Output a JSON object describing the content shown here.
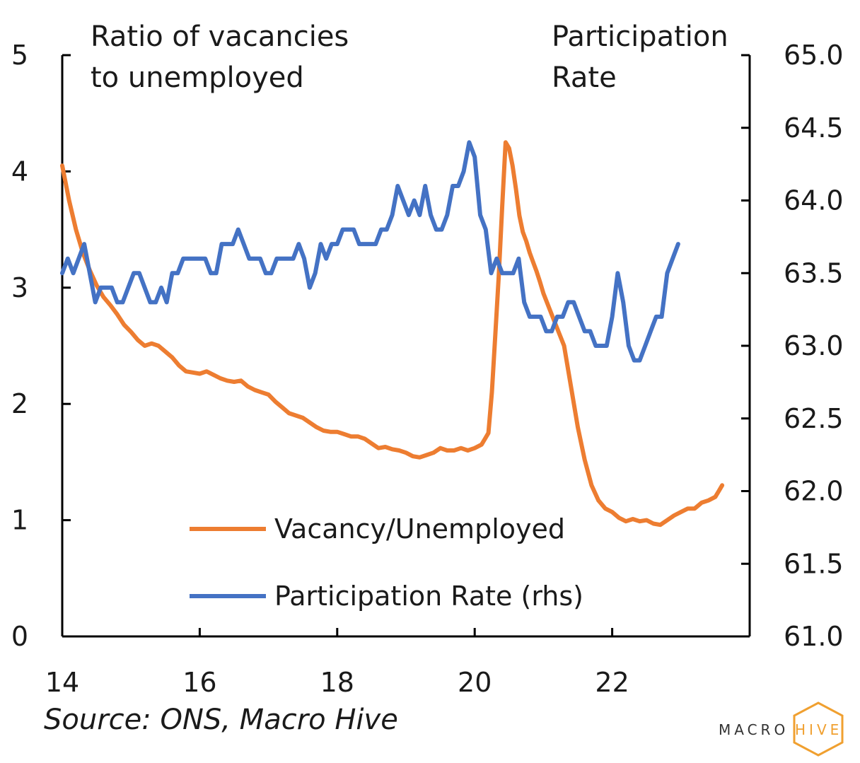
{
  "chart_data": {
    "type": "line",
    "left_title_lines": [
      "Ratio of vacancies",
      "to unemployed"
    ],
    "right_title_lines": [
      "Participation",
      "Rate"
    ],
    "xlim": [
      14,
      24
    ],
    "x_ticks": [
      14,
      16,
      18,
      20,
      22
    ],
    "x_tick_labels": [
      "14",
      "16",
      "18",
      "20",
      "22"
    ],
    "ylim_left": [
      0,
      5
    ],
    "y_left_ticks": [
      0,
      1,
      2,
      3,
      4,
      5
    ],
    "y_left_tick_labels": [
      "0",
      "1",
      "2",
      "3",
      "4",
      "5"
    ],
    "ylim_right": [
      61.0,
      65.0
    ],
    "y_right_ticks": [
      61.0,
      61.5,
      62.0,
      62.5,
      63.0,
      63.5,
      64.0,
      64.5,
      65.0
    ],
    "y_right_tick_labels": [
      "61.0",
      "61.5",
      "62.0",
      "62.5",
      "63.0",
      "63.5",
      "64.0",
      "64.5",
      "65.0"
    ],
    "grid": false,
    "legend_position": "bottom-center",
    "series": [
      {
        "name": "Vacancy/Unemployed",
        "axis": "left",
        "color": "#ED7D31",
        "points": [
          [
            14.0,
            4.05
          ],
          [
            14.1,
            3.75
          ],
          [
            14.2,
            3.5
          ],
          [
            14.3,
            3.3
          ],
          [
            14.4,
            3.15
          ],
          [
            14.5,
            3.02
          ],
          [
            14.6,
            2.92
          ],
          [
            14.7,
            2.85
          ],
          [
            14.8,
            2.77
          ],
          [
            14.9,
            2.68
          ],
          [
            15.0,
            2.62
          ],
          [
            15.1,
            2.55
          ],
          [
            15.2,
            2.5
          ],
          [
            15.3,
            2.52
          ],
          [
            15.4,
            2.5
          ],
          [
            15.5,
            2.45
          ],
          [
            15.6,
            2.4
          ],
          [
            15.7,
            2.33
          ],
          [
            15.8,
            2.28
          ],
          [
            15.9,
            2.27
          ],
          [
            16.0,
            2.26
          ],
          [
            16.1,
            2.28
          ],
          [
            16.2,
            2.25
          ],
          [
            16.3,
            2.22
          ],
          [
            16.4,
            2.2
          ],
          [
            16.5,
            2.19
          ],
          [
            16.6,
            2.2
          ],
          [
            16.7,
            2.15
          ],
          [
            16.8,
            2.12
          ],
          [
            16.9,
            2.1
          ],
          [
            17.0,
            2.08
          ],
          [
            17.1,
            2.02
          ],
          [
            17.2,
            1.97
          ],
          [
            17.3,
            1.92
          ],
          [
            17.4,
            1.9
          ],
          [
            17.5,
            1.88
          ],
          [
            17.6,
            1.84
          ],
          [
            17.7,
            1.8
          ],
          [
            17.8,
            1.77
          ],
          [
            17.9,
            1.76
          ],
          [
            18.0,
            1.76
          ],
          [
            18.1,
            1.74
          ],
          [
            18.2,
            1.72
          ],
          [
            18.3,
            1.72
          ],
          [
            18.4,
            1.7
          ],
          [
            18.5,
            1.66
          ],
          [
            18.6,
            1.62
          ],
          [
            18.7,
            1.63
          ],
          [
            18.8,
            1.61
          ],
          [
            18.9,
            1.6
          ],
          [
            19.0,
            1.58
          ],
          [
            19.1,
            1.55
          ],
          [
            19.2,
            1.54
          ],
          [
            19.3,
            1.56
          ],
          [
            19.4,
            1.58
          ],
          [
            19.5,
            1.62
          ],
          [
            19.6,
            1.6
          ],
          [
            19.7,
            1.6
          ],
          [
            19.8,
            1.62
          ],
          [
            19.9,
            1.6
          ],
          [
            20.0,
            1.62
          ],
          [
            20.1,
            1.65
          ],
          [
            20.15,
            1.7
          ],
          [
            20.2,
            1.75
          ],
          [
            20.25,
            2.1
          ],
          [
            20.3,
            2.6
          ],
          [
            20.35,
            3.1
          ],
          [
            20.4,
            3.7
          ],
          [
            20.45,
            4.25
          ],
          [
            20.5,
            4.2
          ],
          [
            20.55,
            4.05
          ],
          [
            20.6,
            3.85
          ],
          [
            20.65,
            3.62
          ],
          [
            20.7,
            3.48
          ],
          [
            20.75,
            3.4
          ],
          [
            20.8,
            3.3
          ],
          [
            20.85,
            3.22
          ],
          [
            20.9,
            3.14
          ],
          [
            20.95,
            3.05
          ],
          [
            21.0,
            2.95
          ],
          [
            21.1,
            2.8
          ],
          [
            21.2,
            2.65
          ],
          [
            21.3,
            2.5
          ],
          [
            21.4,
            2.15
          ],
          [
            21.5,
            1.8
          ],
          [
            21.6,
            1.52
          ],
          [
            21.7,
            1.3
          ],
          [
            21.8,
            1.17
          ],
          [
            21.9,
            1.1
          ],
          [
            22.0,
            1.07
          ],
          [
            22.1,
            1.02
          ],
          [
            22.2,
            0.99
          ],
          [
            22.3,
            1.01
          ],
          [
            22.4,
            0.99
          ],
          [
            22.5,
            1.0
          ],
          [
            22.6,
            0.97
          ],
          [
            22.7,
            0.96
          ],
          [
            22.8,
            1.0
          ],
          [
            22.9,
            1.04
          ],
          [
            23.0,
            1.07
          ],
          [
            23.1,
            1.1
          ],
          [
            23.2,
            1.1
          ],
          [
            23.3,
            1.15
          ],
          [
            23.4,
            1.17
          ],
          [
            23.5,
            1.2
          ],
          [
            23.55,
            1.25
          ],
          [
            23.6,
            1.3
          ]
        ]
      },
      {
        "name": "Participation Rate (rhs)",
        "axis": "right",
        "color": "#4472C4",
        "points": [
          [
            14.0,
            63.5
          ],
          [
            14.08,
            63.6
          ],
          [
            14.16,
            63.5
          ],
          [
            14.24,
            63.6
          ],
          [
            14.32,
            63.7
          ],
          [
            14.4,
            63.5
          ],
          [
            14.48,
            63.3
          ],
          [
            14.56,
            63.4
          ],
          [
            14.64,
            63.4
          ],
          [
            14.72,
            63.4
          ],
          [
            14.8,
            63.3
          ],
          [
            14.88,
            63.3
          ],
          [
            14.96,
            63.4
          ],
          [
            15.04,
            63.5
          ],
          [
            15.12,
            63.5
          ],
          [
            15.2,
            63.4
          ],
          [
            15.28,
            63.3
          ],
          [
            15.36,
            63.3
          ],
          [
            15.44,
            63.4
          ],
          [
            15.52,
            63.3
          ],
          [
            15.6,
            63.5
          ],
          [
            15.68,
            63.5
          ],
          [
            15.76,
            63.6
          ],
          [
            15.84,
            63.6
          ],
          [
            15.92,
            63.6
          ],
          [
            16.0,
            63.6
          ],
          [
            16.08,
            63.6
          ],
          [
            16.16,
            63.5
          ],
          [
            16.24,
            63.5
          ],
          [
            16.32,
            63.7
          ],
          [
            16.4,
            63.7
          ],
          [
            16.48,
            63.7
          ],
          [
            16.56,
            63.8
          ],
          [
            16.64,
            63.7
          ],
          [
            16.72,
            63.6
          ],
          [
            16.8,
            63.6
          ],
          [
            16.88,
            63.6
          ],
          [
            16.96,
            63.5
          ],
          [
            17.04,
            63.5
          ],
          [
            17.12,
            63.6
          ],
          [
            17.2,
            63.6
          ],
          [
            17.28,
            63.6
          ],
          [
            17.36,
            63.6
          ],
          [
            17.44,
            63.7
          ],
          [
            17.52,
            63.6
          ],
          [
            17.6,
            63.4
          ],
          [
            17.68,
            63.5
          ],
          [
            17.76,
            63.7
          ],
          [
            17.84,
            63.6
          ],
          [
            17.92,
            63.7
          ],
          [
            18.0,
            63.7
          ],
          [
            18.08,
            63.8
          ],
          [
            18.16,
            63.8
          ],
          [
            18.24,
            63.8
          ],
          [
            18.32,
            63.7
          ],
          [
            18.4,
            63.7
          ],
          [
            18.48,
            63.7
          ],
          [
            18.56,
            63.7
          ],
          [
            18.64,
            63.8
          ],
          [
            18.72,
            63.8
          ],
          [
            18.8,
            63.9
          ],
          [
            18.88,
            64.1
          ],
          [
            18.96,
            64.0
          ],
          [
            19.04,
            63.9
          ],
          [
            19.12,
            64.0
          ],
          [
            19.2,
            63.9
          ],
          [
            19.28,
            64.1
          ],
          [
            19.36,
            63.9
          ],
          [
            19.44,
            63.8
          ],
          [
            19.52,
            63.8
          ],
          [
            19.6,
            63.9
          ],
          [
            19.68,
            64.1
          ],
          [
            19.76,
            64.1
          ],
          [
            19.84,
            64.2
          ],
          [
            19.92,
            64.4
          ],
          [
            20.0,
            64.3
          ],
          [
            20.08,
            63.9
          ],
          [
            20.16,
            63.8
          ],
          [
            20.24,
            63.5
          ],
          [
            20.32,
            63.6
          ],
          [
            20.4,
            63.5
          ],
          [
            20.48,
            63.5
          ],
          [
            20.56,
            63.5
          ],
          [
            20.64,
            63.6
          ],
          [
            20.72,
            63.3
          ],
          [
            20.8,
            63.2
          ],
          [
            20.88,
            63.2
          ],
          [
            20.96,
            63.2
          ],
          [
            21.04,
            63.1
          ],
          [
            21.12,
            63.1
          ],
          [
            21.2,
            63.2
          ],
          [
            21.28,
            63.2
          ],
          [
            21.36,
            63.3
          ],
          [
            21.44,
            63.3
          ],
          [
            21.52,
            63.2
          ],
          [
            21.6,
            63.1
          ],
          [
            21.68,
            63.1
          ],
          [
            21.76,
            63.0
          ],
          [
            21.84,
            63.0
          ],
          [
            21.92,
            63.0
          ],
          [
            22.0,
            63.2
          ],
          [
            22.08,
            63.5
          ],
          [
            22.16,
            63.3
          ],
          [
            22.24,
            63.0
          ],
          [
            22.32,
            62.9
          ],
          [
            22.4,
            62.9
          ],
          [
            22.48,
            63.0
          ],
          [
            22.56,
            63.1
          ],
          [
            22.64,
            63.2
          ],
          [
            22.72,
            63.2
          ],
          [
            22.8,
            63.5
          ],
          [
            22.88,
            63.6
          ],
          [
            22.96,
            63.7
          ]
        ]
      }
    ]
  },
  "source_text": "Source: ONS, Macro Hive",
  "logo": {
    "left_text": "MACRO",
    "right_text": "HIVE",
    "text_color": "#333333",
    "accent_color": "#F0A030"
  }
}
